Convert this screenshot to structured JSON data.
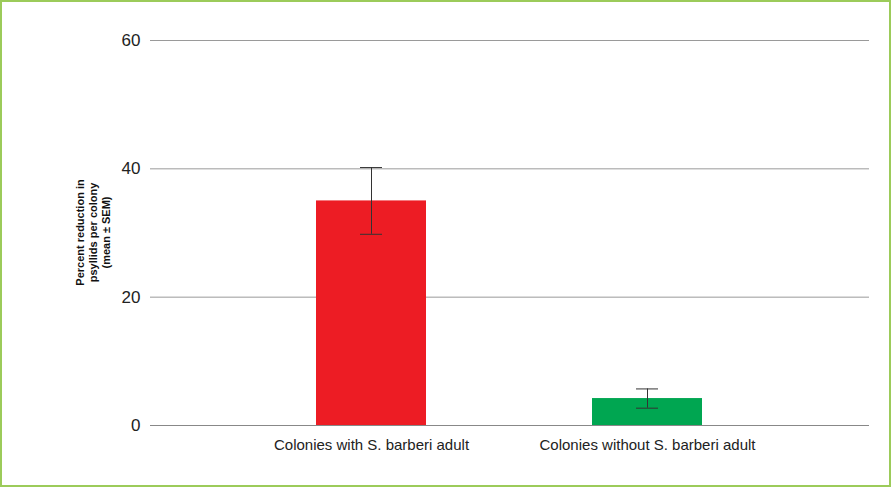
{
  "chart_data": {
    "type": "bar",
    "y_label": "Percent reduction in psyllids per colony (mean ± SEM)",
    "categories": [
      "Colonies with S. barberi adult",
      "Colonies without S. barberi adult"
    ],
    "values": [
      35,
      4.2
    ],
    "errors": [
      5.2,
      1.5
    ],
    "colors": [
      "#ed1c24",
      "#00a651"
    ],
    "ylim": [
      0,
      60
    ],
    "yticks": [
      0,
      20,
      40,
      60
    ],
    "grid": true
  }
}
